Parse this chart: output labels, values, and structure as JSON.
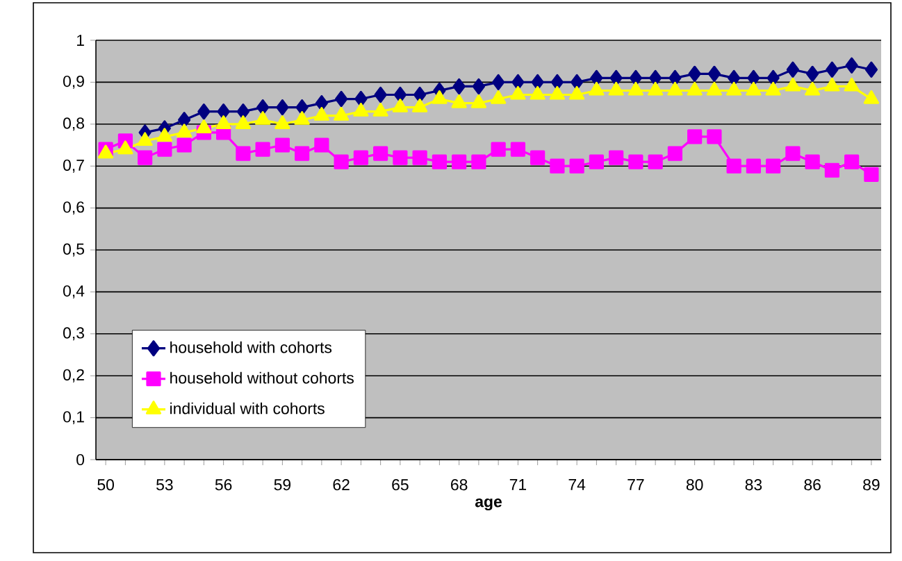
{
  "chart_data": {
    "type": "line",
    "xlabel": "age",
    "categories": [
      "50",
      null,
      null,
      "53",
      null,
      null,
      "56",
      null,
      null,
      "59",
      null,
      null,
      "62",
      null,
      null,
      "65",
      null,
      null,
      "68",
      null,
      null,
      "71",
      null,
      null,
      "74",
      null,
      null,
      "77",
      null,
      null,
      "80",
      null,
      null,
      "83",
      null,
      null,
      "86",
      null,
      null,
      "89"
    ],
    "series": [
      {
        "name": "household with cohorts",
        "color": "#000080",
        "marker": "diamond",
        "values": [
          null,
          null,
          0.78,
          0.79,
          0.81,
          0.83,
          0.83,
          0.83,
          0.84,
          0.84,
          0.84,
          0.85,
          0.86,
          0.86,
          0.87,
          0.87,
          0.87,
          0.88,
          0.89,
          0.89,
          0.9,
          0.9,
          0.9,
          0.9,
          0.9,
          0.91,
          0.91,
          0.91,
          0.91,
          0.91,
          0.92,
          0.92,
          0.91,
          0.91,
          0.91,
          0.93,
          0.92,
          0.93,
          0.94,
          0.93
        ]
      },
      {
        "name": "household without cohorts",
        "color": "#ff00ff",
        "marker": "square",
        "values": [
          0.74,
          0.76,
          0.72,
          0.74,
          0.75,
          0.78,
          0.78,
          0.73,
          0.74,
          0.75,
          0.73,
          0.75,
          0.71,
          0.72,
          0.73,
          0.72,
          0.72,
          0.71,
          0.71,
          0.71,
          0.74,
          0.74,
          0.72,
          0.7,
          0.7,
          0.71,
          0.72,
          0.71,
          0.71,
          0.73,
          0.77,
          0.77,
          0.7,
          0.7,
          0.7,
          0.73,
          0.71,
          0.69,
          0.71,
          0.68
        ]
      },
      {
        "name": "individual with cohorts",
        "color": "#ffff00",
        "marker": "triangle",
        "values": [
          0.73,
          0.74,
          0.76,
          0.77,
          0.78,
          0.79,
          0.8,
          0.8,
          0.81,
          0.8,
          0.81,
          0.82,
          0.82,
          0.83,
          0.83,
          0.84,
          0.84,
          0.86,
          0.85,
          0.85,
          0.86,
          0.87,
          0.87,
          0.87,
          0.87,
          0.88,
          0.88,
          0.88,
          0.88,
          0.88,
          0.88,
          0.88,
          0.88,
          0.88,
          0.88,
          0.89,
          0.88,
          0.89,
          0.89,
          0.86
        ]
      }
    ],
    "ylim": [
      0,
      1
    ],
    "yticks": [
      0,
      {
        "value": 0.1,
        "label": "0,1"
      },
      {
        "value": 0.2,
        "label": "0,2"
      },
      {
        "value": 0.3,
        "label": "0,3"
      },
      {
        "value": 0.4,
        "label": "0,4"
      },
      {
        "value": 0.5,
        "label": "0,5"
      },
      {
        "value": 0.6,
        "label": "0,6"
      },
      {
        "value": 0.7,
        "label": "0,7"
      },
      {
        "value": 0.8,
        "label": "0,8"
      },
      {
        "value": 0.9,
        "label": "0,9"
      },
      1
    ],
    "grid": "y",
    "legend": "bottom left",
    "line_style": "solid"
  }
}
